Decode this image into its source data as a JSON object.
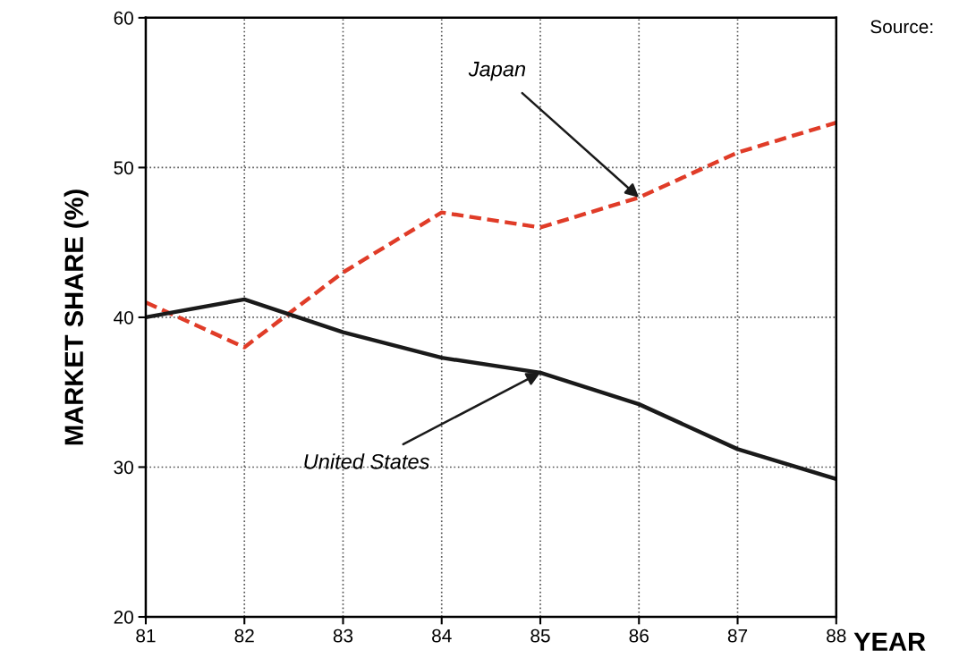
{
  "chart_data": {
    "type": "line",
    "xlabel": "YEAR",
    "ylabel": "MARKET SHARE (%)",
    "x": [
      81,
      82,
      83,
      84,
      85,
      86,
      87,
      88
    ],
    "series": [
      {
        "color": "#e03c28",
        "line_style": "dashed",
        "values": [
          41,
          38,
          43,
          47,
          46,
          48,
          51,
          53
        ]
      },
      {
        "color": "#1a1a1a",
        "line_style": "solid",
        "values": [
          40,
          41.2,
          39,
          37.3,
          36.3,
          34.2,
          31.2,
          29.2
        ]
      }
    ],
    "annotations": [
      {
        "text": "Japan",
        "x": 86,
        "y": 48
      },
      {
        "text": "United States",
        "x": 85,
        "y": 36.3
      },
      "Source:"
    ],
    "xlim": [
      81,
      88
    ],
    "ylim": [
      20,
      60
    ],
    "xticks": [
      81,
      82,
      83,
      84,
      85,
      86,
      87,
      88
    ],
    "yticks": [
      20,
      30,
      40,
      50,
      60
    ],
    "grid": true,
    "legend": false,
    "marker": "none"
  }
}
